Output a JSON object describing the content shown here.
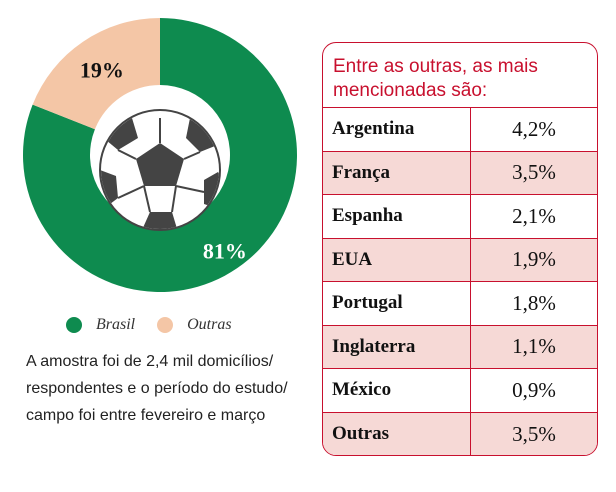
{
  "chart_data": {
    "type": "pie",
    "style": "donut",
    "slices": [
      {
        "name": "Brasil",
        "value": 81,
        "label": "81%",
        "color": "#0e8b4f"
      },
      {
        "name": "Outras",
        "value": 19,
        "label": "19%",
        "color": "#f4c6a6"
      }
    ],
    "legend": [
      "Brasil",
      "Outras"
    ],
    "center_icon": "soccer-ball-icon"
  },
  "note": "A amostra foi de 2,4 mil domicílios/ respondentes e o período do estudo/ campo foi entre fevereiro e março",
  "table": {
    "title": "Entre as outras, as mais mencionadas são:",
    "accent_color": "#c8102e",
    "rows": [
      {
        "country": "Argentina",
        "value": "4,2%"
      },
      {
        "country": "França",
        "value": "3,5%"
      },
      {
        "country": "Espanha",
        "value": "2,1%"
      },
      {
        "country": "EUA",
        "value": "1,9%"
      },
      {
        "country": "Portugal",
        "value": "1,8%"
      },
      {
        "country": "Inglaterra",
        "value": "1,1%"
      },
      {
        "country": "México",
        "value": "0,9%"
      },
      {
        "country": "Outras",
        "value": "3,5%"
      }
    ]
  }
}
